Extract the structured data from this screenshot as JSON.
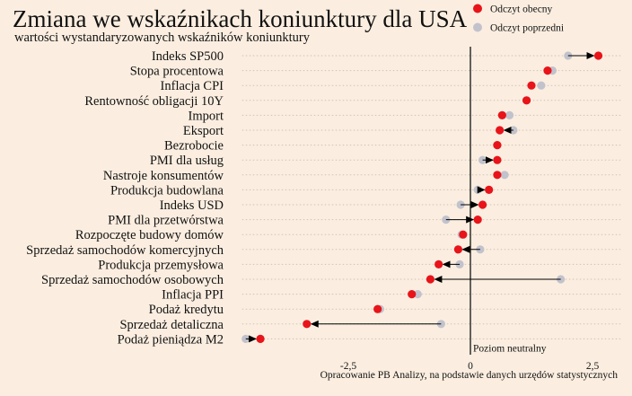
{
  "chart_data": {
    "type": "dot",
    "title": "Zmiana we wskaźnikach koniunktury dla USA",
    "subtitle": "wartości wystandaryzowanych wskaźników koniunktury",
    "source": "Opracowanie PB Analizy, na podstawie danych urzędów statystycznych",
    "zero_label": "Poziom neutralny",
    "xlim": [
      -4.6,
      3.0
    ],
    "xticks": [
      -2.5,
      0,
      2.5
    ],
    "xtick_labels": [
      "-2,5",
      "0",
      "2,5"
    ],
    "grid": "horizontal dotted",
    "legend_position": "top-right",
    "series": [
      {
        "name": "Odczyt obecny",
        "color": "#e8141a"
      },
      {
        "name": "Odczyt poprzedni",
        "color": "#c2c2cc"
      }
    ],
    "categories": [
      "Indeks SP500",
      "Stopa procentowa",
      "Inflacja CPI",
      "Rentowność obligacji 10Y",
      "Import",
      "Eksport",
      "Bezrobocie",
      "PMI dla usług",
      "Nastroje konsumentów",
      "Produkcja budowlana",
      "Indeks USD",
      "PMI dla przetwórstwa",
      "Rozpoczęte budowy domów",
      "Sprzedaż samochodów komercyjnych",
      "Produkcja przemysłowa",
      "Sprzedaż samochodów osobowych",
      "Inflacja PPI",
      "Podaż kredytu",
      "Sprzedaż detaliczna",
      "Podaż pieniądza M2"
    ],
    "current": [
      2.62,
      1.58,
      1.25,
      1.15,
      0.65,
      0.6,
      0.55,
      0.55,
      0.55,
      0.38,
      0.25,
      0.15,
      -0.15,
      -0.25,
      -0.65,
      -0.82,
      -1.2,
      -1.9,
      -3.35,
      -4.3
    ],
    "previous": [
      2.0,
      1.68,
      1.45,
      1.15,
      0.8,
      0.88,
      0.55,
      0.25,
      0.7,
      0.15,
      -0.2,
      -0.5,
      -0.18,
      0.2,
      -0.22,
      1.85,
      -1.08,
      -1.85,
      -0.6,
      -4.6
    ],
    "arrows": [
      true,
      false,
      false,
      false,
      false,
      true,
      false,
      true,
      false,
      true,
      true,
      true,
      false,
      true,
      true,
      true,
      false,
      false,
      true,
      true
    ]
  }
}
